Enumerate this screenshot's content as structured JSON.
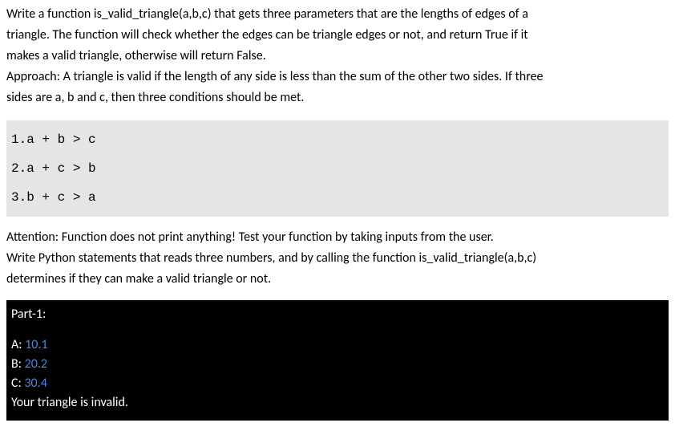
{
  "intro": {
    "line1": "Write a function is_valid_triangle(a,b,c) that gets three parameters that are the lengths of edges of a",
    "line2": "triangle. The function will check whether the edges can be triangle edges or not, and return True if it",
    "line3": "makes a valid triangle, otherwise will return False.",
    "approach1": "Approach: A triangle is valid if the length of any side is less than the sum of the other two sides. If three",
    "approach2": "sides are a, b and c, then three conditions should be met."
  },
  "conditions": {
    "c1": "1.a + b > c",
    "c2": "2.a + c > b",
    "c3": "3.b + c > a"
  },
  "attention": {
    "line1": "Attention: Function does not print anything! Test your function by taking inputs from the user.",
    "line2": "Write Python statements that reads three numbers, and by calling the function is_valid_triangle(a,b,c)",
    "line3": "determines if they can make a valid triangle or not."
  },
  "terminal": {
    "header": "Part-1:",
    "promptA": "A: ",
    "valA": "10.1",
    "promptB": "B: ",
    "valB": "20.2",
    "promptC": "C: ",
    "valC": "30.4",
    "result": "Your triangle is invalid.",
    "input_color": "#4a88d8",
    "bg_color": "#000000",
    "fg_color": "#ffffff"
  },
  "styling": {
    "body_font": "Calibri",
    "mono_font": "Courier New",
    "code_bg": "#e5e5e5",
    "body_bg": "#ffffff",
    "text_color": "#000000",
    "font_size_pt": 12
  }
}
